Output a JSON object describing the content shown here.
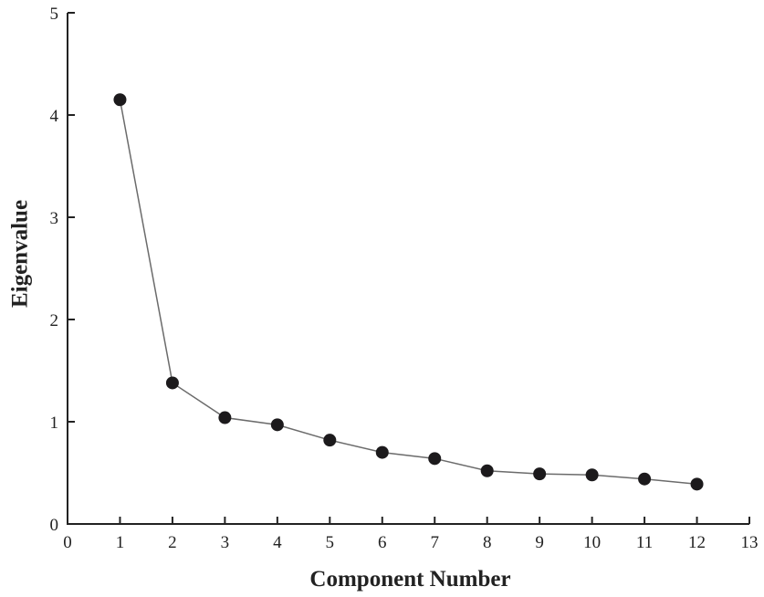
{
  "chart_data": {
    "type": "line",
    "title": "",
    "xlabel": "Component Number",
    "ylabel": "Eigenvalue",
    "xlim": [
      0,
      13
    ],
    "ylim": [
      0,
      5
    ],
    "xticks": [
      "0",
      "1",
      "2",
      "3",
      "4",
      "5",
      "6",
      "7",
      "8",
      "9",
      "10",
      "11",
      "12",
      "13"
    ],
    "yticks": [
      "0",
      "1",
      "2",
      "3",
      "4",
      "5"
    ],
    "grid": false,
    "legend": "none",
    "series": [
      {
        "x": [
          1,
          2,
          3,
          4,
          5,
          6,
          7,
          8,
          9,
          10,
          11,
          12
        ],
        "values": [
          4.15,
          1.38,
          1.04,
          0.97,
          0.82,
          0.7,
          0.64,
          0.52,
          0.49,
          0.48,
          0.44,
          0.39
        ]
      }
    ],
    "colors": {
      "line": "#6b6b6b",
      "marker": "#1c1a1c",
      "axis": "#222222"
    }
  }
}
